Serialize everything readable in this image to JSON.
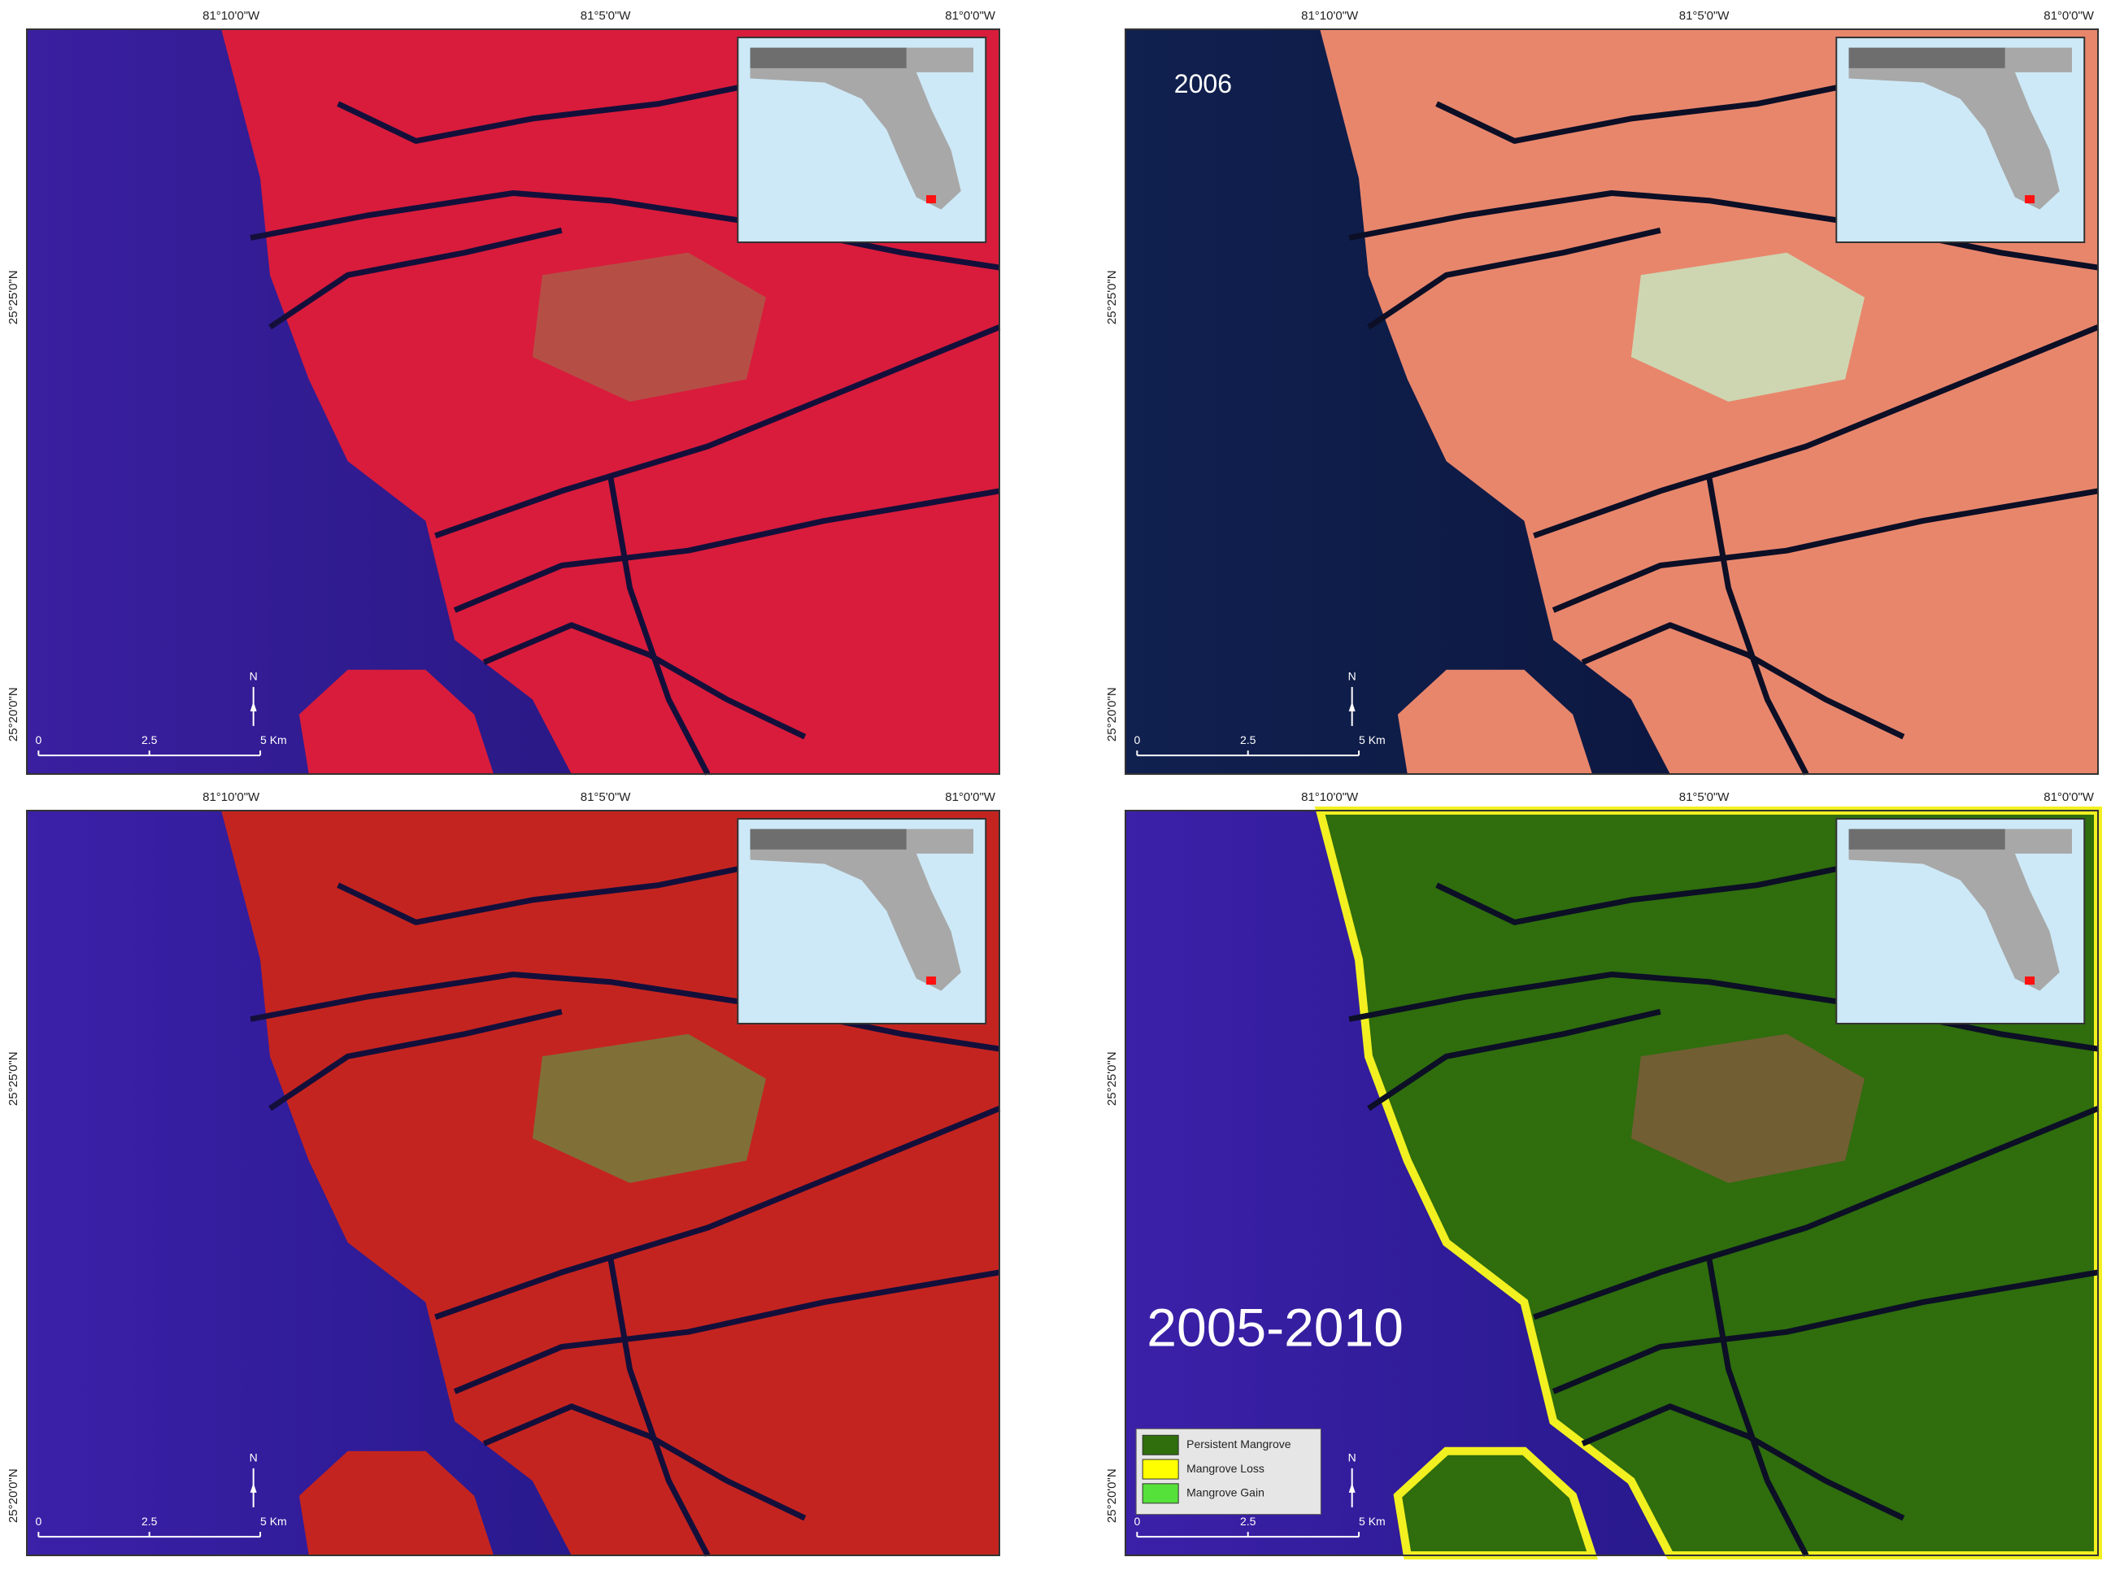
{
  "panels": [
    {
      "top_labels": [
        "81°10'0\"W",
        "81°5'0\"W",
        "81°0'0\"W"
      ],
      "side_labels": [
        "25°25'0\"N",
        "25°20'0\"N"
      ],
      "north": "N",
      "scale_labels": [
        "0",
        "2.5",
        "5 Km"
      ]
    },
    {
      "top_labels": [
        "81°10'0\"W",
        "81°5'0\"W",
        "81°0'0\"W"
      ],
      "side_labels": [
        "25°25'0\"N",
        "25°20'0\"N"
      ],
      "north": "N",
      "scale_labels": [
        "0",
        "2.5",
        "5 Km"
      ],
      "label": "2006"
    },
    {
      "top_labels": [
        "81°10'0\"W",
        "81°5'0\"W",
        "81°0'0\"W"
      ],
      "side_labels": [
        "25°25'0\"N",
        "25°20'0\"N"
      ],
      "north": "N",
      "scale_labels": [
        "0",
        "2.5",
        "5 Km"
      ]
    },
    {
      "top_labels": [
        "81°10'0\"W",
        "81°5'0\"W",
        "81°0'0\"W"
      ],
      "side_labels": [
        "25°25'0\"N",
        "25°20'0\"N"
      ],
      "north": "N",
      "scale_labels": [
        "0",
        "2.5",
        "5 Km"
      ],
      "label": "2005-2010",
      "legend": [
        "Persistent Mangrove",
        "Mangrove Loss",
        "Mangrove Gain"
      ]
    }
  ]
}
